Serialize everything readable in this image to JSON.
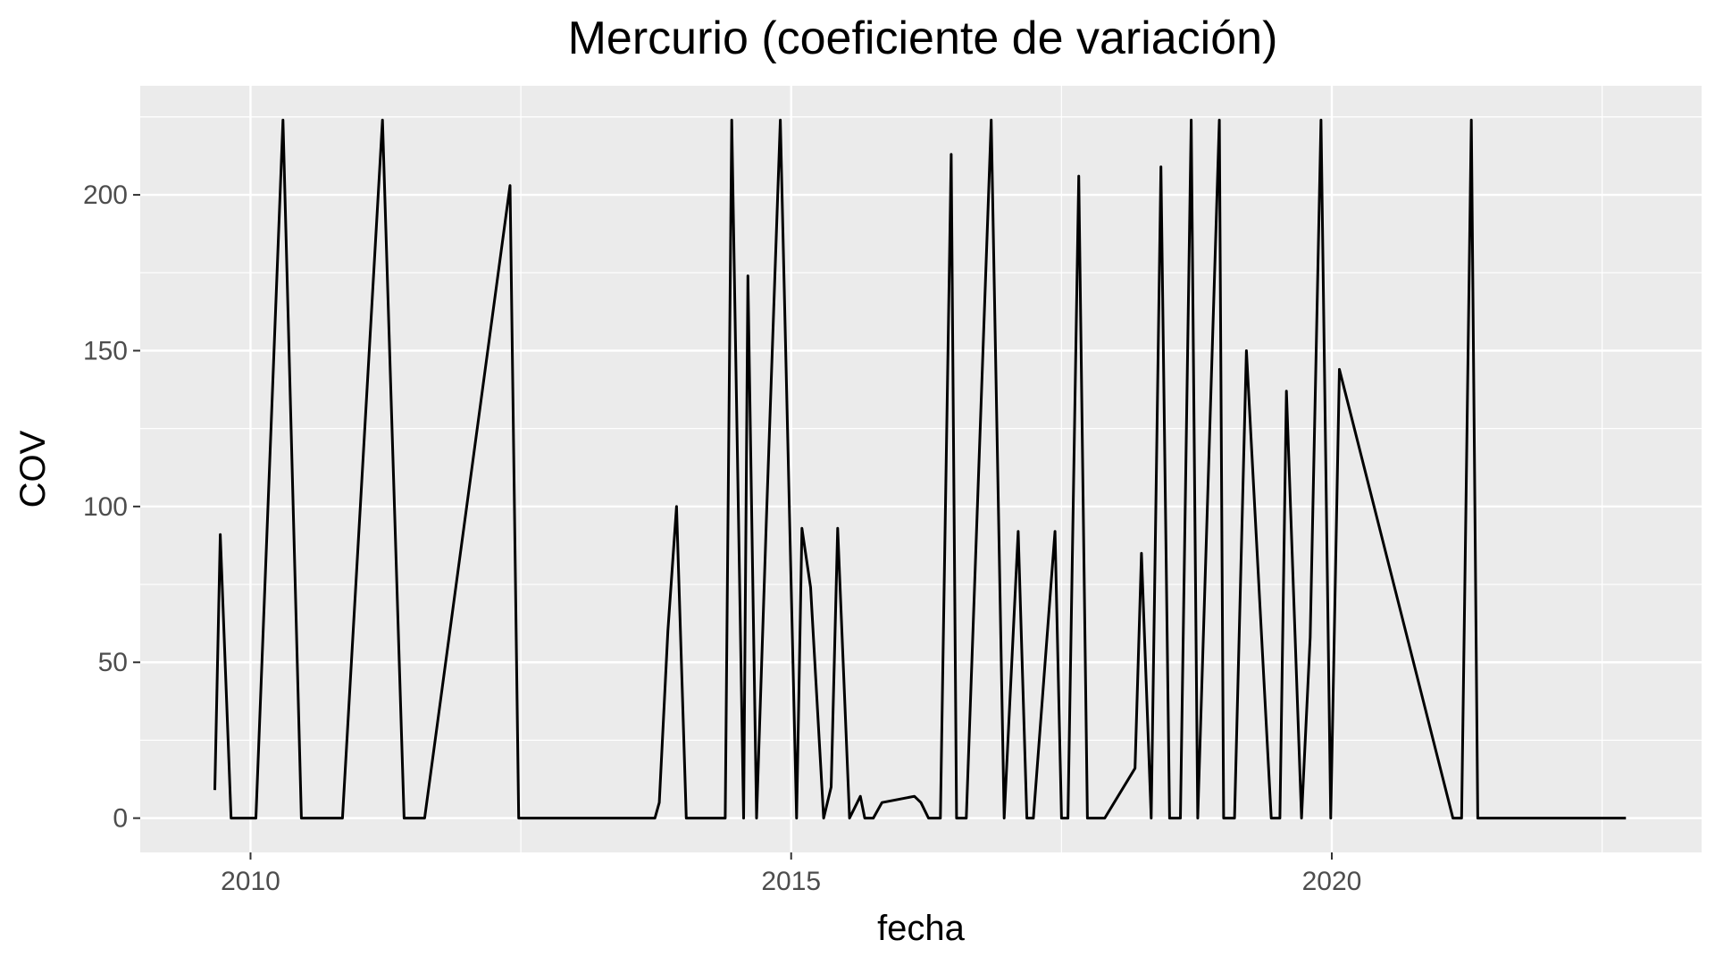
{
  "chart_data": {
    "type": "line",
    "title": "Mercurio (coeficiente de variación)",
    "xlabel": "fecha",
    "ylabel": "COV",
    "x_ticks": [
      "2010",
      "2015",
      "2020"
    ],
    "y_ticks": [
      "0",
      "50",
      "100",
      "150",
      "200"
    ],
    "xlim": [
      2008.98,
      2023.42
    ],
    "ylim": [
      -11,
      235
    ],
    "grid": true,
    "legend": "none",
    "colors": {
      "panel": "#ebebeb",
      "line": "#000000",
      "grid": "#ffffff",
      "tick_text": "#4d4d4d"
    },
    "series": [
      {
        "x": [
          2009.67,
          2009.72,
          2009.82,
          2010.05,
          2010.3,
          2010.47,
          2010.85,
          2011.22,
          2011.42,
          2011.61,
          2012.4,
          2012.48,
          2013.74,
          2013.78,
          2013.86,
          2013.94,
          2014.03,
          2014.39,
          2014.45,
          2014.56,
          2014.6,
          2014.68,
          2014.77,
          2014.9,
          2015.05,
          2015.1,
          2015.18,
          2015.3,
          2015.37,
          2015.43,
          2015.54,
          2015.64,
          2015.68,
          2015.76,
          2015.84,
          2016.14,
          2016.2,
          2016.27,
          2016.38,
          2016.48,
          2016.53,
          2016.62,
          2016.85,
          2016.97,
          2017.1,
          2017.18,
          2017.24,
          2017.44,
          2017.5,
          2017.56,
          2017.66,
          2017.74,
          2017.82,
          2017.9,
          2018.18,
          2018.24,
          2018.33,
          2018.42,
          2018.5,
          2018.6,
          2018.7,
          2018.76,
          2018.96,
          2019.0,
          2019.1,
          2019.21,
          2019.44,
          2019.52,
          2019.58,
          2019.72,
          2019.8,
          2019.9,
          2019.99,
          2020.07,
          2021.12,
          2021.2,
          2021.29,
          2021.35,
          2022.72
        ],
        "y": [
          9,
          91,
          0,
          0,
          224,
          0,
          0,
          224,
          0,
          0,
          203,
          0,
          0,
          5,
          60,
          100,
          0,
          0,
          224,
          0,
          174,
          0,
          95,
          224,
          0,
          93,
          74,
          0,
          10,
          93,
          0,
          7,
          0,
          0,
          5,
          7,
          5,
          0,
          0,
          213,
          0,
          0,
          224,
          0,
          92,
          0,
          0,
          92,
          0,
          0,
          206,
          0,
          0,
          0,
          16,
          85,
          0,
          209,
          0,
          0,
          224,
          0,
          224,
          0,
          0,
          150,
          0,
          0,
          137,
          0,
          58,
          224,
          0,
          144,
          0,
          0,
          224,
          0,
          0
        ]
      }
    ]
  }
}
